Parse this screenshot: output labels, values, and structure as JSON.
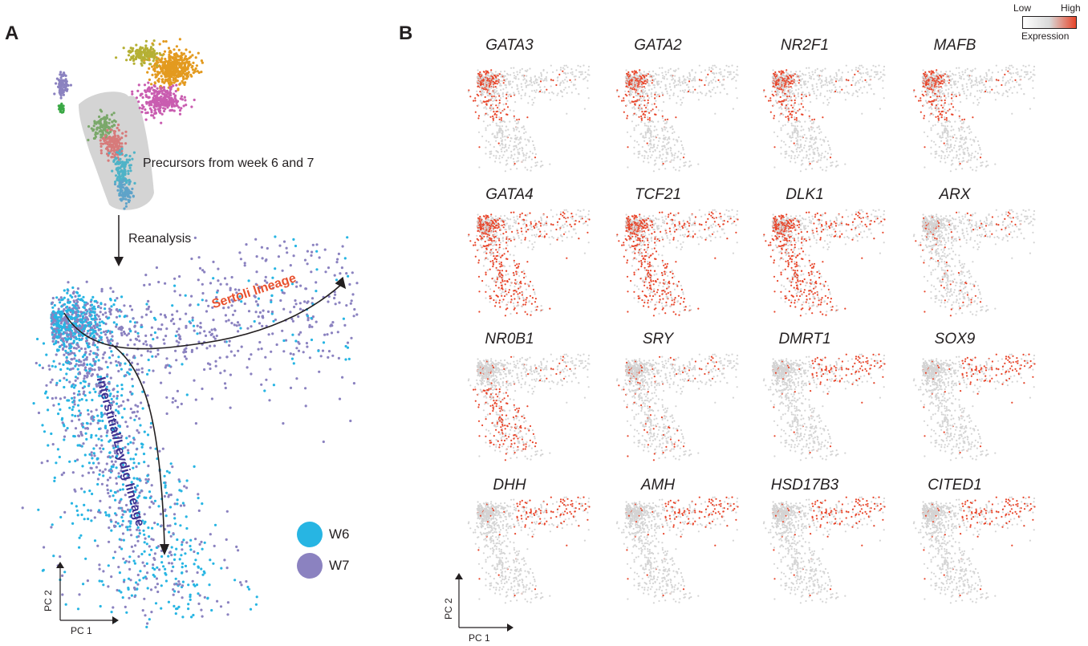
{
  "panels": {
    "a": {
      "letter": "A",
      "umap_label": "Precursors from week 6 and 7",
      "reanalysis_label": "Reanalysis",
      "sertoli_label": "Sertoli lineage",
      "leydig_label": "Interstitial/Leydig lineage",
      "legend": [
        {
          "name": "W6",
          "color": "#27b5e3"
        },
        {
          "name": "W7",
          "color": "#8b82c0"
        }
      ],
      "axis_x": "PC 1",
      "axis_y": "PC 2"
    },
    "b": {
      "letter": "B",
      "genes": [
        "GATA3",
        "GATA2",
        "NR2F1",
        "MAFB",
        "GATA4",
        "TCF21",
        "DLK1",
        "ARX",
        "NR0B1",
        "SRY",
        "DMRT1",
        "SOX9",
        "DHH",
        "AMH",
        "HSD17B3",
        "CITED1"
      ],
      "gene_patterns": [
        "topleft",
        "topleft",
        "topleft",
        "topleft",
        "broad",
        "broad",
        "broad",
        "weak",
        "mid",
        "weak",
        "arm",
        "arm",
        "arm",
        "arm",
        "arm",
        "arm"
      ],
      "expression_legend": {
        "low": "Low",
        "high": "High",
        "title": "Expression"
      },
      "axis_x": "PC 1",
      "axis_y": "PC 2"
    }
  },
  "colors": {
    "w6": "#27b5e3",
    "w7": "#8b82c0",
    "expression_high": "#e8452a",
    "expression_low": "#d4d4d4",
    "sertoli_text": "#e8512f",
    "leydig_text": "#3b2f8f",
    "umap_clusters": [
      "#e39a1f",
      "#b5b034",
      "#c95db0",
      "#8b82c0",
      "#3aa845",
      "#7aa86a",
      "#d77a7a",
      "#4fb3c7",
      "#5fa3c9"
    ]
  }
}
